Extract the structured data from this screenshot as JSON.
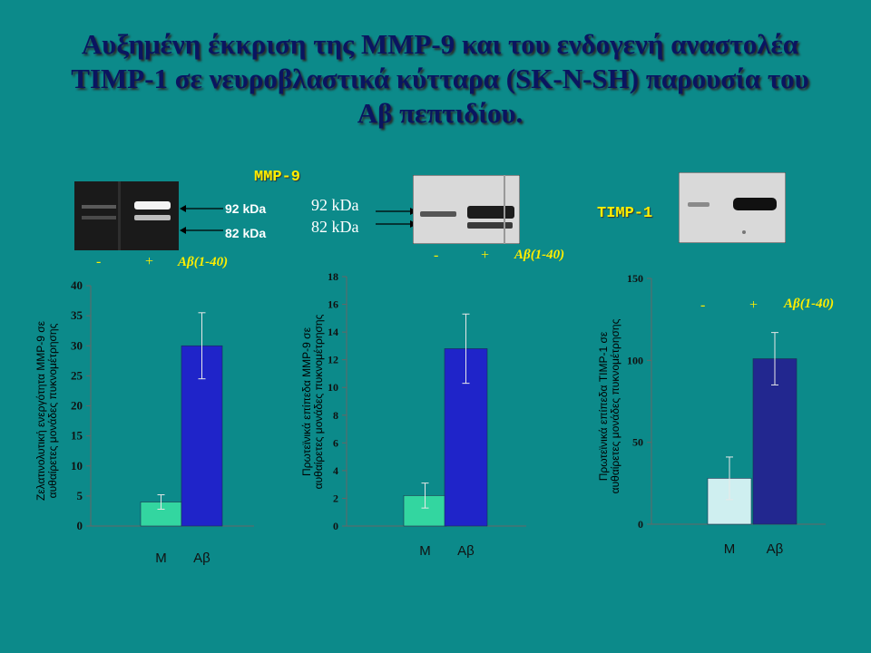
{
  "title": {
    "line1": "Αυξημένη έκκριση της MMP-9 και του ενδογενή αναστολέα",
    "line2": "TIMP-1 σε νευροβλαστικά κύτταρα (SK-N-SH) παρουσία του",
    "line3": "Αβ πεπτιδίου."
  },
  "labels": {
    "mmp9": "MMP-9",
    "timp1": "TIMP-1",
    "kda92": "92 kDa",
    "kda82": "82 kDa",
    "minus": "-",
    "plus": "+",
    "abeta": "Aβ(1-40)"
  },
  "colors": {
    "background": "#0c8a8a",
    "bar_M": "#33d6a0",
    "bar_Ab": "#1f24c9",
    "bar_M_timp": "#cfeff0",
    "bar_Ab_timp": "#22278f"
  },
  "chart_data": [
    {
      "type": "bar",
      "categories": [
        "M",
        "Aβ"
      ],
      "values": [
        4,
        30
      ],
      "errors": [
        1.2,
        5.5
      ],
      "ylabel_line1": "Ζελατινολυτική ενεργότητα MMP-9 σε",
      "ylabel_line2": "αυθαίρετες μονάδες πυκνομέτρησης",
      "ylim": [
        0,
        40
      ],
      "yticks": [
        "0",
        "5",
        "10",
        "15",
        "20",
        "25",
        "30",
        "35",
        "40"
      ]
    },
    {
      "type": "bar",
      "categories": [
        "M",
        "Aβ"
      ],
      "values": [
        2.2,
        12.8
      ],
      "errors": [
        0.9,
        2.5
      ],
      "ylabel_line1": "Πρωτεϊνικά επίπεδα MMP-9 σε",
      "ylabel_line2": "αυθαίρετες μονάδες πυκνομέτρησης",
      "ylim": [
        0,
        18
      ],
      "yticks": [
        "0",
        "2",
        "4",
        "6",
        "8",
        "10",
        "12",
        "14",
        "16",
        "18"
      ]
    },
    {
      "type": "bar",
      "categories": [
        "M",
        "Aβ"
      ],
      "values": [
        28,
        101
      ],
      "errors": [
        13,
        16
      ],
      "ylabel_line1": "Πρωτεϊνικά επίπεδα TIMP-1 σε",
      "ylabel_line2": "αυθαίρετες μονάδες πυκνομέτρησης",
      "ylim": [
        0,
        150
      ],
      "yticks": [
        "0",
        "50",
        "100",
        "150"
      ]
    }
  ]
}
